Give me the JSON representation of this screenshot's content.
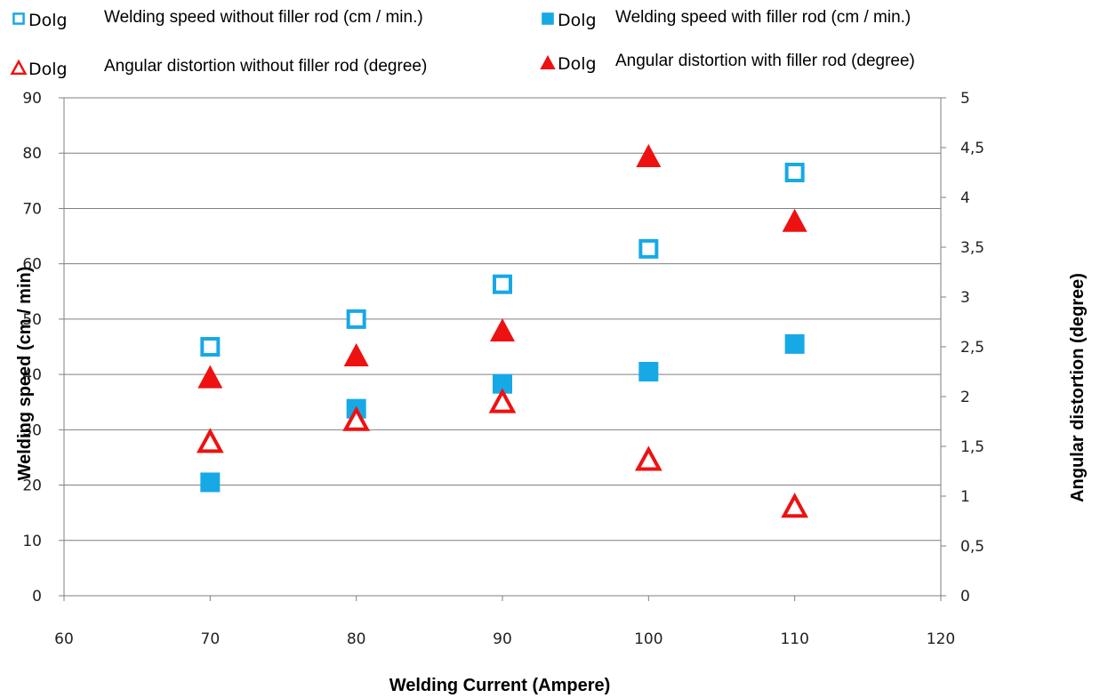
{
  "chart_data": {
    "type": "scatter",
    "title": "",
    "xlabel": "Welding Current (Ampere)",
    "ylabel": "Welding speed (cm / min)",
    "y2label": "Angular distortion (degree)",
    "xlim": [
      60,
      120
    ],
    "xticks": [
      60,
      70,
      80,
      90,
      100,
      110,
      120
    ],
    "ylim": [
      0,
      90
    ],
    "yticks": [
      0,
      10,
      20,
      30,
      40,
      50,
      60,
      70,
      80,
      90
    ],
    "y2lim": [
      0,
      5
    ],
    "y2ticks": [
      "0",
      "0,5",
      "1",
      "1,5",
      "2",
      "2,5",
      "3",
      "3,5",
      "4",
      "4,5",
      "5"
    ],
    "y2tick_values": [
      0,
      0.5,
      1,
      1.5,
      2,
      2.5,
      3,
      3.5,
      4,
      4.5,
      5
    ],
    "grid": "horizontal major",
    "legend_position": "top",
    "legend_prefix": "Dolg",
    "series": [
      {
        "name": "Welding speed without filler rod (cm / min.)",
        "axis": "left",
        "marker": "square-open",
        "color": "#16A9E6",
        "x": [
          70,
          80,
          90,
          100,
          110
        ],
        "y": [
          45,
          50,
          56.3,
          62.7,
          76.5
        ]
      },
      {
        "name": "Welding speed with filler rod (cm / min.)",
        "axis": "left",
        "marker": "square-filled",
        "color": "#16A9E6",
        "x": [
          70,
          80,
          90,
          100,
          110
        ],
        "y": [
          20.5,
          33.8,
          38.3,
          40.5,
          45.5
        ]
      },
      {
        "name": "Angular distortion without filler rod (degree)",
        "axis": "right",
        "marker": "triangle-open",
        "color": "#EE1111",
        "x": [
          70,
          80,
          90,
          100,
          110
        ],
        "y": [
          1.55,
          1.77,
          1.95,
          1.37,
          0.9
        ]
      },
      {
        "name": "Angular distortion with filler rod (degree)",
        "axis": "right",
        "marker": "triangle-filled",
        "color": "#EE1111",
        "x": [
          70,
          80,
          90,
          100,
          110
        ],
        "y": [
          2.2,
          2.42,
          2.67,
          4.42,
          3.77
        ]
      }
    ]
  }
}
